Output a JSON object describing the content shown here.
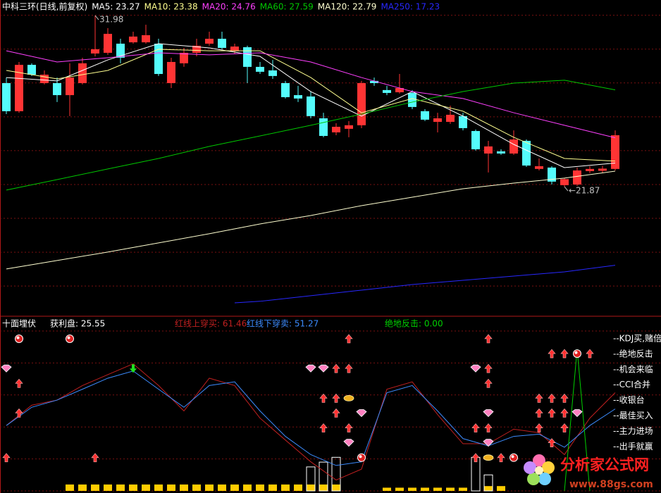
{
  "chart_data": [
    {
      "type": "candlestick",
      "title": "中科三环(日线,前复权)",
      "open": [
        27.99,
        26.33,
        29.07,
        27.99,
        27.99,
        27.28,
        27.99,
        29.74,
        29.78,
        30.32,
        30.4,
        30.4,
        30.32,
        27.99,
        29.16,
        29.78,
        30.32,
        30.61,
        29.9,
        30.11,
        28.95,
        28.74,
        27.99,
        27.28,
        27.2,
        25.91,
        25.08,
        25.29,
        25.5,
        28.12,
        27.58,
        27.45,
        27.41,
        26.33,
        25.7,
        25.7,
        26.04,
        25.16,
        23.83,
        23.96,
        23.83,
        24.58,
        22.92,
        23.0,
        21.96,
        22.0,
        22.79,
        22.81,
        22.92
      ],
      "high": [
        28.32,
        29.24,
        29.16,
        28.74,
        28.32,
        29.16,
        29.49,
        31.98,
        31.24,
        30.61,
        31.03,
        31.44,
        30.61,
        29.49,
        30.07,
        30.61,
        31.03,
        31.03,
        30.32,
        30.2,
        29.24,
        29.36,
        28.12,
        27.83,
        27.49,
        26.24,
        25.62,
        25.75,
        28.12,
        28.32,
        27.83,
        28.53,
        27.58,
        26.45,
        26.24,
        26.66,
        26.24,
        25.25,
        24.58,
        24.08,
        25.2,
        24.66,
        23.54,
        23.08,
        22.4,
        23.0,
        23.08,
        23.1,
        25.2
      ],
      "low": [
        26.16,
        26.24,
        28.41,
        27.91,
        26.87,
        26.04,
        27.91,
        29.57,
        29.66,
        29.16,
        30.32,
        30.32,
        28.41,
        27.7,
        28.95,
        29.57,
        30.2,
        29.99,
        29.74,
        27.99,
        28.53,
        28.24,
        27.08,
        26.87,
        25.91,
        24.79,
        24.91,
        24.79,
        25.33,
        27.83,
        27.28,
        27.37,
        26.45,
        25.75,
        25.08,
        25.58,
        25.2,
        24.0,
        22.71,
        23.75,
        23.75,
        23.04,
        22.83,
        22.0,
        21.87,
        21.92,
        22.67,
        22.7,
        22.83
      ],
      "close": [
        26.33,
        29.07,
        28.49,
        28.49,
        27.28,
        28.32,
        29.16,
        29.99,
        30.9,
        29.49,
        30.74,
        30.82,
        28.53,
        29.24,
        29.78,
        30.2,
        30.61,
        30.07,
        30.15,
        28.95,
        28.66,
        28.41,
        27.16,
        27.08,
        26.04,
        24.87,
        25.41,
        25.5,
        27.99,
        27.99,
        27.41,
        27.7,
        26.58,
        25.83,
        25.91,
        26.12,
        25.33,
        24.08,
        24.25,
        23.83,
        24.66,
        23.12,
        23.08,
        22.17,
        22.32,
        22.83,
        22.92,
        22.94,
        24.91
      ],
      "up_color": "#ff3434",
      "down_color": "#54fcfc",
      "ylim": [
        14.26,
        32.9
      ],
      "yticks": [
        16,
        18,
        20,
        22,
        24,
        26,
        28,
        30,
        32
      ],
      "grid": true,
      "series": [
        {
          "name": "MA5: 23.27",
          "color": "#ffffff",
          "x": [
            0,
            4,
            8,
            12,
            16,
            20,
            24,
            28,
            32,
            36,
            40,
            44,
            48
          ],
          "values": [
            28.32,
            28.12,
            29.36,
            30.32,
            30.07,
            29.57,
            27.49,
            26.04,
            27.49,
            26.04,
            24.37,
            23.0,
            23.27
          ]
        },
        {
          "name": "MA10: 23.38",
          "color": "#ffff90",
          "x": [
            0,
            4,
            8,
            12,
            16,
            20,
            24,
            28,
            32,
            36,
            40,
            44,
            48
          ],
          "values": [
            28.74,
            28.24,
            28.74,
            29.99,
            29.9,
            29.9,
            28.32,
            26.24,
            27.08,
            26.33,
            24.79,
            23.54,
            23.38
          ]
        },
        {
          "name": "MA20: 24.76",
          "color": "#ff40ff",
          "x": [
            0,
            4,
            8,
            12,
            16,
            20,
            24,
            28,
            32,
            36,
            40,
            44,
            48
          ],
          "values": [
            29.9,
            29.24,
            29.49,
            29.78,
            29.66,
            29.78,
            29.24,
            28.32,
            27.49,
            27.08,
            26.24,
            25.5,
            24.76
          ]
        },
        {
          "name": "MA60: 27.59",
          "color": "#00c800",
          "x": [
            0,
            4,
            8,
            12,
            16,
            20,
            24,
            28,
            32,
            36,
            40,
            44,
            48
          ],
          "values": [
            21.67,
            22.29,
            22.92,
            23.54,
            24.25,
            24.87,
            25.5,
            26.16,
            26.87,
            27.49,
            27.99,
            28.16,
            27.59
          ]
        },
        {
          "name": "MA120: 22.79",
          "color": "#ffffd0",
          "x": [
            0,
            4,
            8,
            12,
            16,
            20,
            24,
            28,
            32,
            36,
            40,
            44,
            48
          ],
          "values": [
            17.01,
            17.51,
            18.01,
            18.55,
            19.09,
            19.67,
            20.17,
            20.75,
            21.25,
            21.75,
            22.08,
            22.38,
            22.79
          ]
        },
        {
          "name": "MA250: 17.23",
          "color": "#2828ff",
          "x": [
            18,
            20,
            24,
            28,
            32,
            36,
            40,
            44,
            48
          ],
          "values": [
            15.01,
            15.1,
            15.43,
            15.76,
            16.09,
            16.34,
            16.59,
            16.84,
            17.23
          ]
        }
      ],
      "annotations": [
        {
          "text": "31.98",
          "x": 7,
          "value": 31.98
        },
        {
          "text": "←21.87",
          "x": 44,
          "value": 21.87
        }
      ]
    },
    {
      "type": "line",
      "title": "十面埋伏",
      "subtitle": "获利盘: 25.55",
      "ylim": [
        0,
        100
      ],
      "yticks": [
        0,
        20,
        40,
        60,
        80,
        100
      ],
      "grid": true,
      "series": [
        {
          "name": "红线上穿买: 61.46",
          "color": "#c02020",
          "x": [
            0,
            2,
            4,
            6,
            8,
            10,
            12,
            14,
            16,
            18,
            20,
            22,
            24,
            26,
            28,
            30,
            32,
            34,
            36,
            38,
            40,
            42,
            44,
            46,
            48
          ],
          "values": [
            40.9,
            53.6,
            56.8,
            65.9,
            72.7,
            79.5,
            65.9,
            50.0,
            70.5,
            65.9,
            45.5,
            31.8,
            18.2,
            6.8,
            13.6,
            63.6,
            68.2,
            47.7,
            29.5,
            29.5,
            38.6,
            36.4,
            22.7,
            45.5,
            61.46
          ]
        },
        {
          "name": "红线下穿卖: 51.27",
          "color": "#3c8cff",
          "x": [
            0,
            2,
            4,
            6,
            8,
            10,
            12,
            14,
            16,
            18,
            20,
            22,
            24,
            26,
            28,
            30,
            32,
            34,
            36,
            38,
            40,
            42,
            44,
            46,
            48
          ],
          "values": [
            40.9,
            52.3,
            56.8,
            63.6,
            70.5,
            75.0,
            63.6,
            52.3,
            65.9,
            68.2,
            50.0,
            34.1,
            22.7,
            15.9,
            18.2,
            61.4,
            65.9,
            50.0,
            32.7,
            28.2,
            34.1,
            35.5,
            27.3,
            40.9,
            51.27
          ]
        },
        {
          "name": "绝地反击: 0.00",
          "color": "#00d000",
          "x": [
            44,
            45,
            46
          ],
          "values": [
            0,
            88.6,
            0
          ]
        }
      ],
      "bars": [
        {
          "color": "#ffcc00",
          "x": [
            5,
            6,
            7,
            8,
            9,
            10,
            11,
            12,
            13,
            14,
            15,
            16,
            17,
            18,
            19,
            20,
            21,
            22,
            23,
            24,
            25,
            26,
            30,
            31,
            32,
            33,
            34,
            35,
            36,
            38,
            39
          ],
          "values": [
            4,
            4,
            4,
            4,
            4,
            4,
            4,
            4,
            4,
            4,
            4,
            4,
            4,
            4,
            4,
            4,
            4,
            4,
            4,
            4,
            4,
            4,
            2,
            2,
            2,
            2,
            2,
            2,
            2,
            3,
            3
          ]
        },
        {
          "color": "#ffffff",
          "outline": true,
          "x": [
            24,
            25,
            26,
            37,
            38
          ],
          "values": [
            15,
            18,
            21,
            21,
            10
          ]
        }
      ],
      "signals": [
        {
          "ball": [
            1,
            5
          ],
          "arrow": [
            27,
            38
          ]
        },
        {
          "arrow": [
            43,
            44,
            46
          ],
          "ball": [
            45
          ]
        },
        {
          "diamond": [
            0,
            24,
            25,
            37
          ],
          "arrow": [
            26,
            27,
            38
          ],
          "down_arrow": [
            10
          ]
        },
        {
          "arrow": [
            1,
            38
          ]
        },
        {
          "arrow": [
            25,
            26,
            42,
            43,
            44
          ],
          "ingot": [
            27
          ]
        },
        {
          "arrow": [
            1,
            26,
            42,
            43,
            44
          ],
          "diamond": [
            28,
            38,
            45
          ]
        },
        {
          "arrow": [
            25,
            27,
            37,
            38,
            42,
            44
          ]
        },
        {
          "diamond": [
            27,
            38
          ],
          "arrow": [
            43
          ]
        },
        {
          "arrow": [
            0,
            7,
            37,
            39
          ],
          "ingot": [
            38
          ],
          "ball": [
            28,
            40
          ]
        }
      ],
      "right_labels": [
        "--KDJ买,赌倍",
        "--绝地反击",
        "--机会来临",
        "--CCI合并",
        "--收银台",
        "--最佳买入",
        "--主力进场",
        "--出手就赢"
      ]
    }
  ],
  "watermark": {
    "title": "分析家公式网",
    "url": "www.88gs.com"
  }
}
